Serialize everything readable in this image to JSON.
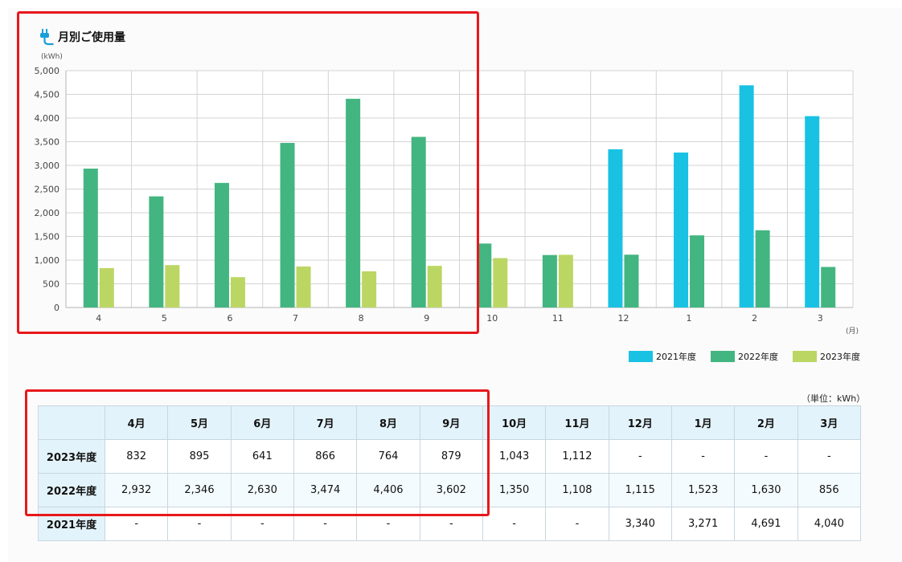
{
  "chart_data": {
    "type": "bar",
    "title": "月別ご使用量",
    "ylabel": "(kWh)",
    "xlabel": "(月)",
    "categories": [
      "4",
      "5",
      "6",
      "7",
      "8",
      "9",
      "10",
      "11",
      "12",
      "1",
      "2",
      "3"
    ],
    "ylim": [
      0,
      5000
    ],
    "yticks": [
      "5,000",
      "4,500",
      "4,000",
      "3,500",
      "3,000",
      "2,500",
      "2,000",
      "1,500",
      "1,000",
      "500",
      "0"
    ],
    "grid": true,
    "legend": "bottom-right",
    "series": [
      {
        "name": "2021年度",
        "color": "#19c2e3",
        "values": [
          null,
          null,
          null,
          null,
          null,
          null,
          null,
          null,
          3340,
          3271,
          4691,
          4040
        ]
      },
      {
        "name": "2022年度",
        "color": "#43b581",
        "values": [
          2932,
          2346,
          2630,
          3474,
          4406,
          3602,
          1350,
          1108,
          1115,
          1523,
          1630,
          856
        ]
      },
      {
        "name": "2023年度",
        "color": "#bcd663",
        "values": [
          832,
          895,
          641,
          866,
          764,
          879,
          1043,
          1112,
          null,
          null,
          null,
          null
        ]
      }
    ]
  },
  "table": {
    "unit": "（単位：kWh）",
    "headers": [
      "4月",
      "5月",
      "6月",
      "7月",
      "8月",
      "9月",
      "10月",
      "11月",
      "12月",
      "1月",
      "2月",
      "3月"
    ],
    "rows": [
      {
        "label": "2023年度",
        "cells": [
          "832",
          "895",
          "641",
          "866",
          "764",
          "879",
          "1,043",
          "1,112",
          "-",
          "-",
          "-",
          "-"
        ]
      },
      {
        "label": "2022年度",
        "cells": [
          "2,932",
          "2,346",
          "2,630",
          "3,474",
          "4,406",
          "3,602",
          "1,350",
          "1,108",
          "1,115",
          "1,523",
          "1,630",
          "856"
        ]
      },
      {
        "label": "2021年度",
        "cells": [
          "-",
          "-",
          "-",
          "-",
          "-",
          "-",
          "-",
          "-",
          "3,340",
          "3,271",
          "4,691",
          "4,040"
        ]
      }
    ]
  },
  "highlight_color": "#e8181b"
}
